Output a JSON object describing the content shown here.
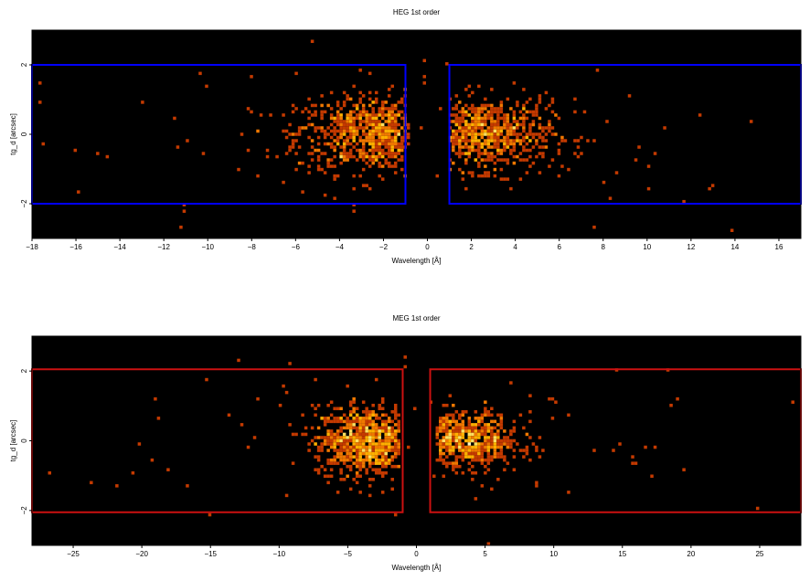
{
  "chart_data": [
    {
      "type": "heatmap",
      "title": "HEG 1st order",
      "xlabel": "Wavelength [Å]",
      "ylabel": "tg_d [arcsec]",
      "xlim": [
        -18,
        17
      ],
      "ylim": [
        -3,
        3
      ],
      "xticks": [
        -18,
        -16,
        -14,
        -12,
        -10,
        -8,
        -6,
        -4,
        -2,
        0,
        2,
        4,
        6,
        8,
        10,
        12,
        14,
        16
      ],
      "xtick_labels": [
        "−18",
        "−16",
        "−14",
        "−12",
        "−10",
        "−8",
        "−6",
        "−4",
        "−2",
        "0",
        "2",
        "4",
        "6",
        "8",
        "10",
        "12",
        "14",
        "16"
      ],
      "yticks": [
        -2,
        0,
        2
      ],
      "ytick_labels": [
        "−2",
        "0",
        "2"
      ],
      "grid": false,
      "background": "#000000",
      "colormap": [
        "#7a1400",
        "#c43a00",
        "#f07800",
        "#ffb000",
        "#ffe060",
        "#fff8c0"
      ],
      "clusters": [
        {
          "x_center": -2.2,
          "x_sigma": 1.9,
          "y_sigma": 0.55,
          "count": 900,
          "x_min": -8.8,
          "x_max": -0.9
        },
        {
          "x_center": 2.5,
          "x_sigma": 1.6,
          "y_sigma": 0.5,
          "count": 750,
          "x_min": 1.0,
          "x_max": 9.5
        },
        {
          "x_center": 0,
          "x_sigma": 10,
          "y_sigma": 1.6,
          "count": 110,
          "x_min": -18,
          "x_max": 17
        }
      ],
      "regions": [
        {
          "color": "#0000ff",
          "x_min": -18,
          "x_max": -1.0,
          "y_min": -2.0,
          "y_max": 2.0
        },
        {
          "color": "#0000ff",
          "x_min": 1.0,
          "x_max": 17,
          "y_min": -2.0,
          "y_max": 2.0
        }
      ]
    },
    {
      "type": "heatmap",
      "title": "MEG 1st order",
      "xlabel": "Wavelength [Å]",
      "ylabel": "tg_d [arcsec]",
      "xlim": [
        -28,
        28
      ],
      "ylim": [
        -3,
        3
      ],
      "xticks": [
        -25,
        -20,
        -15,
        -10,
        -5,
        0,
        5,
        10,
        15,
        20,
        25
      ],
      "xtick_labels": [
        "−25",
        "−20",
        "−15",
        "−10",
        "−5",
        "0",
        "5",
        "10",
        "15",
        "20",
        "25"
      ],
      "yticks": [
        -2,
        0,
        2
      ],
      "ytick_labels": [
        "−2",
        "0",
        "2"
      ],
      "grid": false,
      "background": "#000000",
      "colormap": [
        "#7a1400",
        "#c43a00",
        "#f07800",
        "#ffb000",
        "#ffe060",
        "#fff8c0"
      ],
      "clusters": [
        {
          "x_center": -3.6,
          "x_sigma": 1.9,
          "y_sigma": 0.5,
          "count": 850,
          "x_min": -10.5,
          "x_max": -1.2
        },
        {
          "x_center": 3.4,
          "x_sigma": 2.1,
          "y_sigma": 0.4,
          "count": 700,
          "x_min": 1.5,
          "x_max": 9.5
        },
        {
          "x_center": 0,
          "x_sigma": 14,
          "y_sigma": 1.6,
          "count": 90,
          "x_min": -28,
          "x_max": 28
        }
      ],
      "regions": [
        {
          "color": "#cc1111",
          "x_min": -28,
          "x_max": -1.0,
          "y_min": -2.05,
          "y_max": 2.05
        },
        {
          "color": "#cc1111",
          "x_min": 1.0,
          "x_max": 28,
          "y_min": -2.05,
          "y_max": 2.05
        }
      ]
    }
  ]
}
